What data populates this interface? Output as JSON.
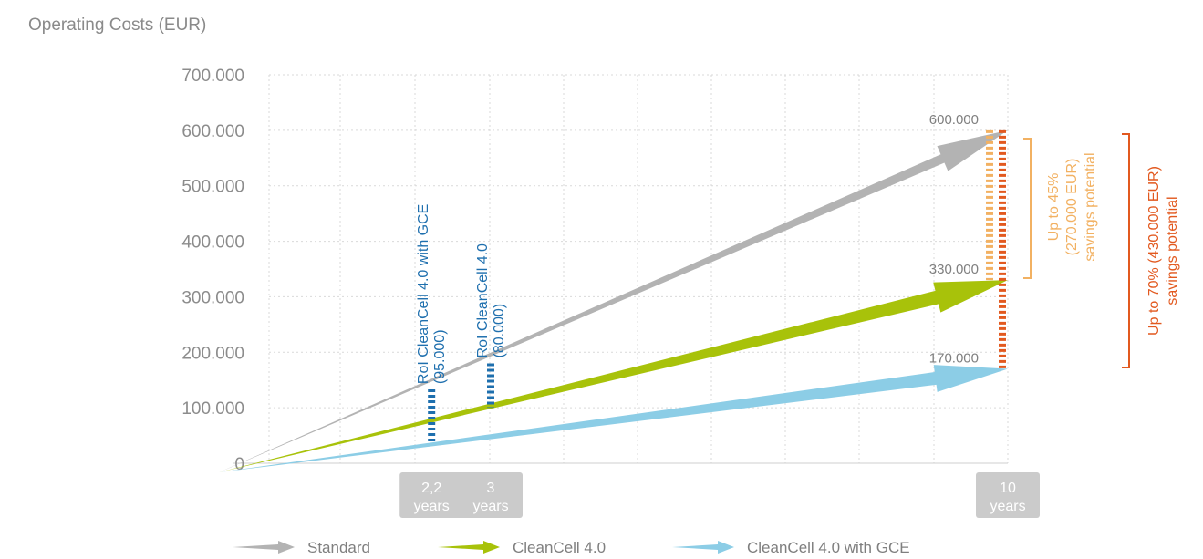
{
  "ylabel": "Operating Costs (EUR)",
  "chart_data": {
    "type": "line",
    "ylabel": "Operating Costs (EUR)",
    "ylim": [
      0,
      700000
    ],
    "xlim": [
      0,
      10
    ],
    "yticks": [
      {
        "value": 0,
        "label": "0"
      },
      {
        "value": 100000,
        "label": "100.000"
      },
      {
        "value": 200000,
        "label": "200.000"
      },
      {
        "value": 300000,
        "label": "300.000"
      },
      {
        "value": 400000,
        "label": "400.000"
      },
      {
        "value": 500000,
        "label": "500.000"
      },
      {
        "value": 600000,
        "label": "600.000"
      },
      {
        "value": 700000,
        "label": "700.000"
      }
    ],
    "grid": true,
    "series": [
      {
        "name": "Standard",
        "color": "#b3b3b3",
        "x": [
          0,
          10
        ],
        "y": [
          0,
          600000
        ]
      },
      {
        "name": "CleanCell 4.0",
        "color": "#a8c20a",
        "x": [
          0,
          10
        ],
        "y": [
          0,
          330000
        ]
      },
      {
        "name": "CleanCell 4.0 with GCE",
        "color": "#8ccde6",
        "x": [
          0,
          10
        ],
        "y": [
          0,
          170000
        ]
      }
    ],
    "end_labels": [
      {
        "value": 600000,
        "label": "600.000"
      },
      {
        "value": 330000,
        "label": "330.000"
      },
      {
        "value": 170000,
        "label": "170.000"
      }
    ],
    "x_markers": [
      {
        "x": 2.2,
        "line1": "2,2",
        "line2": "years"
      },
      {
        "x": 3,
        "line1": "3",
        "line2": "years"
      },
      {
        "x": 10,
        "line1": "10",
        "line2": "years"
      }
    ],
    "roi_annotations": [
      {
        "x": 2.2,
        "y_from": 37000,
        "y_to": 133000,
        "line1": "RoI CleanCell 4.0 with GCE",
        "line2": "(95.000)"
      },
      {
        "x": 3,
        "y_from": 100000,
        "y_to": 180000,
        "line1": "RoI CleanCell 4.0",
        "line2": "(80.000)"
      }
    ],
    "savings": [
      {
        "y_from": 330000,
        "y_to": 600000,
        "color": "#f2b162",
        "line1": "Up to 45%",
        "line2": "(270.000 EUR)",
        "line3": "savings potential"
      },
      {
        "y_from": 170000,
        "y_to": 600000,
        "color": "#e2591f",
        "line1": "Up to 70% (430.000 EUR)",
        "line2": "savings potential"
      }
    ],
    "legend_position": "bottom"
  }
}
